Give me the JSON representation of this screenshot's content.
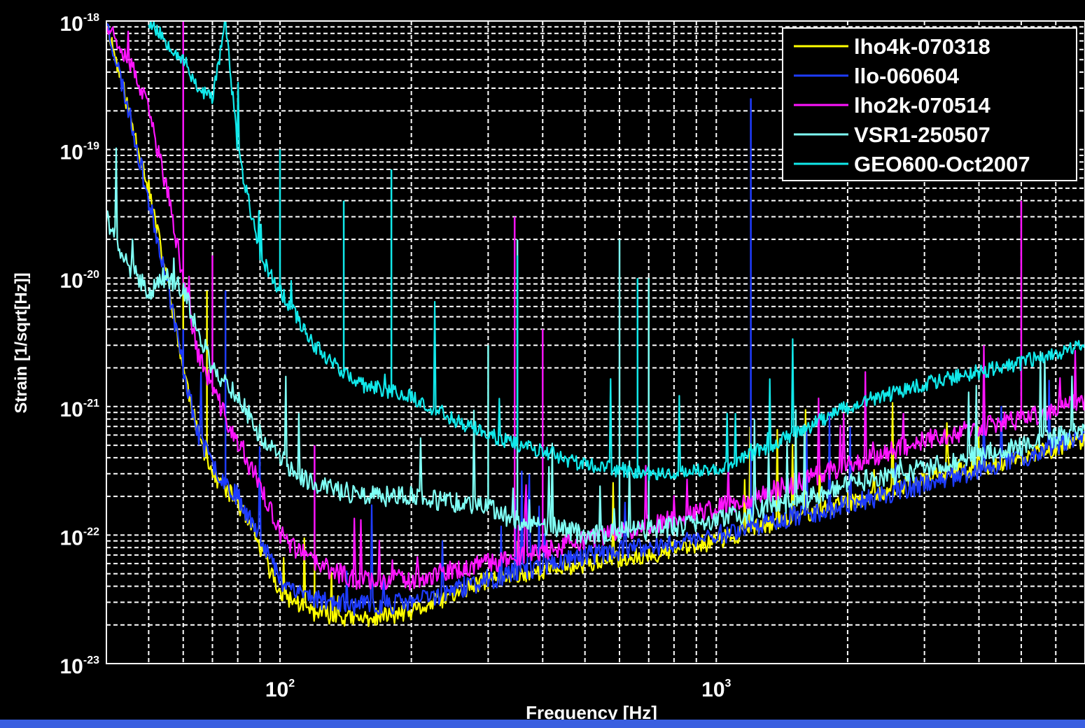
{
  "chart_data": {
    "type": "line",
    "title": "",
    "xlabel": "Frequency [Hz]",
    "ylabel": "Strain [1/sqrt[Hz]]",
    "xscale": "log",
    "yscale": "log",
    "xlim": [
      40,
      7000
    ],
    "ylim": [
      1e-23,
      1e-18
    ],
    "grid": true,
    "legend_position": "top-right",
    "x_ticks": [
      {
        "value": 100,
        "base": "10",
        "exp": "2"
      },
      {
        "value": 1000,
        "base": "10",
        "exp": "3"
      }
    ],
    "y_ticks": [
      {
        "value": 1e-18,
        "base": "10",
        "exp": "-18"
      },
      {
        "value": 1e-19,
        "base": "10",
        "exp": "-19"
      },
      {
        "value": 1e-20,
        "base": "10",
        "exp": "-20"
      },
      {
        "value": 1e-21,
        "base": "10",
        "exp": "-21"
      },
      {
        "value": 1e-22,
        "base": "10",
        "exp": "-22"
      },
      {
        "value": 1e-23,
        "base": "10",
        "exp": "-23"
      }
    ],
    "series": [
      {
        "name": "lho4k-070318",
        "color": "#ffff00",
        "jitter": 0.07,
        "seed": 11,
        "x": [
          40,
          45,
          50,
          55,
          60,
          65,
          70,
          80,
          90,
          100,
          120,
          150,
          200,
          300,
          500,
          700,
          1000,
          1500,
          2000,
          3000,
          5000,
          7000
        ],
        "y": [
          1e-18,
          2e-19,
          5e-20,
          1e-20,
          2e-21,
          6e-22,
          3e-22,
          1.8e-22,
          8e-23,
          3.5e-23,
          2.5e-23,
          2.2e-23,
          2.5e-23,
          4.5e-23,
          6e-23,
          7e-23,
          9e-23,
          1.4e-22,
          1.8e-22,
          2.7e-22,
          4e-22,
          5.5e-22
        ],
        "peaks": [
          [
            60,
            1.2e-20
          ],
          [
            68,
            8e-21
          ],
          [
            120,
            1e-22
          ],
          [
            348,
            9e-23
          ]
        ]
      },
      {
        "name": "llo-060604",
        "color": "#1e3cff",
        "jitter": 0.08,
        "seed": 23,
        "x": [
          40,
          45,
          50,
          55,
          60,
          65,
          70,
          80,
          90,
          100,
          120,
          150,
          200,
          300,
          500,
          700,
          1000,
          1500,
          2000,
          3000,
          5000,
          7000
        ],
        "y": [
          1e-18,
          2e-19,
          4e-20,
          1e-20,
          2e-21,
          6e-22,
          3.5e-22,
          2e-22,
          1e-22,
          4.5e-23,
          3.2e-23,
          2.8e-23,
          3e-23,
          4.5e-23,
          7e-23,
          8e-23,
          1e-22,
          1.4e-22,
          1.7e-22,
          2.5e-22,
          4e-22,
          5.8e-22
        ],
        "peaks": [
          [
            75,
            8e-21
          ],
          [
            1200,
            2.5e-19
          ],
          [
            60,
            4e-21
          ]
        ]
      },
      {
        "name": "lho2k-070514",
        "color": "#ff14ff",
        "jitter": 0.08,
        "seed": 37,
        "x": [
          40,
          45,
          50,
          55,
          60,
          65,
          70,
          80,
          90,
          100,
          120,
          150,
          200,
          300,
          500,
          700,
          1000,
          1500,
          2000,
          3000,
          5000,
          7000
        ],
        "y": [
          1e-18,
          5e-19,
          2e-19,
          5e-20,
          1e-20,
          2.5e-21,
          1.4e-21,
          5e-22,
          2.5e-22,
          1e-22,
          6e-23,
          4.5e-23,
          4.5e-23,
          6e-23,
          9e-23,
          1.2e-22,
          1.6e-22,
          2.5e-22,
          3.5e-22,
          5.5e-22,
          8e-22,
          1.1e-21
        ],
        "peaks": [
          [
            60,
            1e-18
          ],
          [
            70,
            1.5e-20
          ],
          [
            120,
            5e-22
          ],
          [
            345,
            3e-20
          ],
          [
            400,
            4e-21
          ],
          [
            5000,
            4e-20
          ]
        ]
      },
      {
        "name": "VSR1-250507",
        "color": "#7ffff5",
        "jitter": 0.08,
        "seed": 41,
        "x": [
          40,
          45,
          50,
          55,
          60,
          70,
          80,
          90,
          100,
          110,
          120,
          150,
          200,
          250,
          300,
          350,
          400,
          500,
          700,
          1000,
          1500,
          2000,
          3000,
          5000,
          7000
        ],
        "y": [
          3e-20,
          1.2e-20,
          8e-21,
          1e-20,
          8e-21,
          2e-21,
          1.2e-21,
          6e-22,
          4e-22,
          3e-22,
          2.5e-22,
          2e-22,
          2e-22,
          1.8e-22,
          1.6e-22,
          1.3e-22,
          1.2e-22,
          1e-22,
          1.1e-22,
          1.3e-22,
          1.8e-22,
          2.5e-22,
          3.3e-22,
          5e-22,
          6.5e-22
        ],
        "peaks": [
          [
            300,
            3e-21
          ],
          [
            350,
            2e-20
          ],
          [
            600,
            2e-20
          ],
          [
            700,
            1e-20
          ]
        ]
      },
      {
        "name": "GEO600-Oct2007",
        "color": "#11e8ea",
        "jitter": 0.06,
        "seed": 53,
        "x": [
          50,
          60,
          65,
          70,
          75,
          80,
          90,
          100,
          120,
          150,
          200,
          250,
          300,
          400,
          500,
          700,
          1000,
          1500,
          2000,
          3000,
          5000,
          7000
        ],
        "y": [
          1e-18,
          5e-19,
          3e-19,
          2.5e-19,
          1e-18,
          1e-19,
          1.5e-20,
          8e-21,
          3e-21,
          1.5e-21,
          1.2e-21,
          8e-22,
          6e-22,
          4.5e-22,
          3.5e-22,
          3e-22,
          3.2e-22,
          6e-22,
          1e-21,
          1.5e-21,
          2.2e-21,
          3e-21
        ],
        "peaks": [
          [
            100,
            1e-19
          ],
          [
            180,
            7e-20
          ],
          [
            140,
            4e-20
          ],
          [
            350,
            1.5e-20
          ],
          [
            660,
            1e-20
          ]
        ]
      }
    ]
  },
  "colors": {
    "background": "#000000",
    "axes": "#ffffff",
    "grid": "#ffffff",
    "bottom_bar": "#3a5fe0"
  }
}
